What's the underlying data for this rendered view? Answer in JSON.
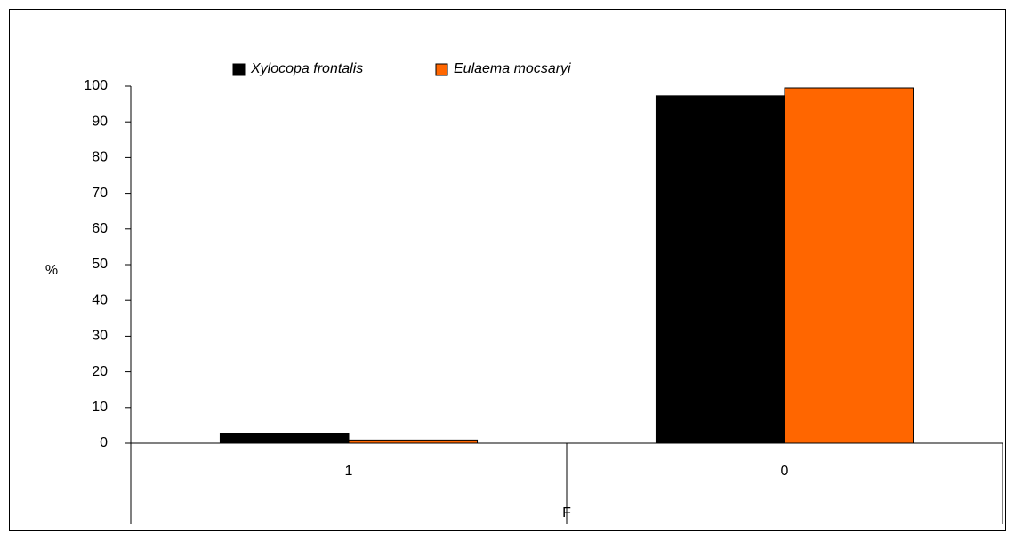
{
  "chart_data": {
    "type": "bar",
    "categories": [
      "1",
      "0"
    ],
    "series": [
      {
        "name": "Xylocopa frontalis",
        "color": "#000000",
        "values": [
          2.7,
          97.3
        ]
      },
      {
        "name": "Eulaema mocsaryi",
        "color": "#ff6600",
        "values": [
          0.9,
          99.5
        ]
      }
    ],
    "ylim": [
      0,
      100
    ],
    "yticks": [
      0,
      10,
      20,
      30,
      40,
      50,
      60,
      70,
      80,
      90,
      100
    ],
    "x_label": "F",
    "y_label": "%",
    "legend": "top"
  }
}
